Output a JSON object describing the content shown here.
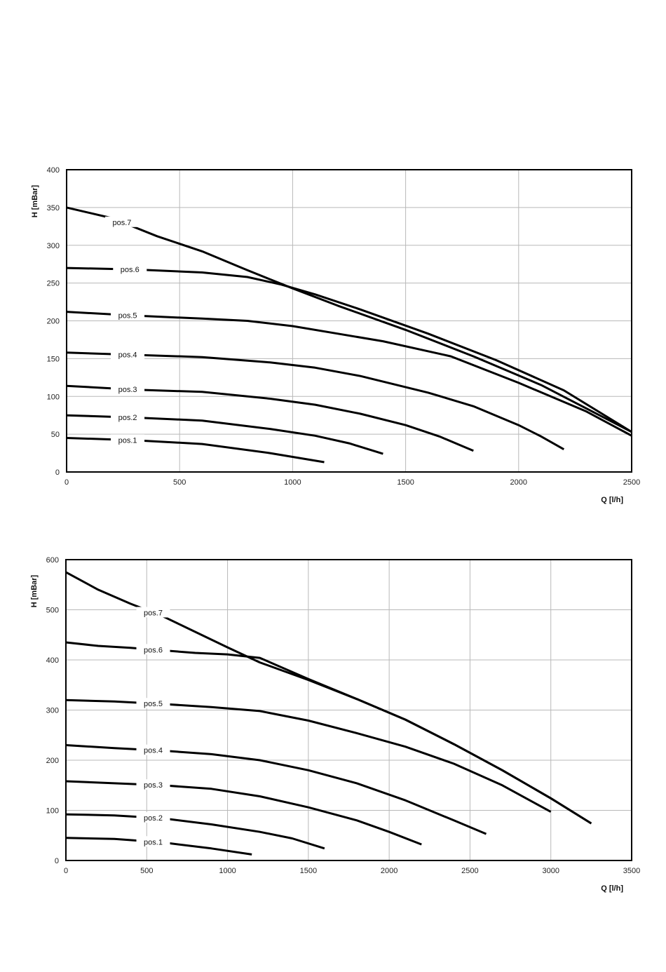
{
  "chart_data": [
    {
      "type": "line",
      "xlabel": "Q [l/h]",
      "ylabel": "H [mBar]",
      "xlim": [
        0,
        2500
      ],
      "ylim": [
        0,
        400
      ],
      "xticks": [
        0,
        500,
        1000,
        1500,
        2000,
        2500
      ],
      "yticks": [
        0,
        50,
        100,
        150,
        200,
        250,
        300,
        350,
        400
      ],
      "grid": true,
      "series": [
        {
          "name": "pos.1",
          "label_at": 270,
          "x": [
            0,
            300,
            600,
            900,
            1140
          ],
          "y": [
            45,
            42,
            37,
            25,
            13
          ]
        },
        {
          "name": "pos.2",
          "label_at": 270,
          "x": [
            0,
            300,
            600,
            900,
            1100,
            1250,
            1400
          ],
          "y": [
            75,
            72,
            68,
            57,
            48,
            38,
            24
          ]
        },
        {
          "name": "pos.3",
          "label_at": 270,
          "x": [
            0,
            300,
            600,
            900,
            1100,
            1300,
            1500,
            1650,
            1800
          ],
          "y": [
            114,
            109,
            106,
            97,
            89,
            77,
            62,
            47,
            28
          ]
        },
        {
          "name": "pos.4",
          "label_at": 270,
          "x": [
            0,
            300,
            600,
            900,
            1100,
            1300,
            1600,
            1800,
            2000,
            2100,
            2200
          ],
          "y": [
            158,
            155,
            152,
            145,
            138,
            127,
            105,
            87,
            62,
            47,
            30
          ]
        },
        {
          "name": "pos.5",
          "label_at": 270,
          "x": [
            0,
            300,
            600,
            800,
            1000,
            1200,
            1400,
            1700,
            2000,
            2300,
            2500
          ],
          "y": [
            212,
            207,
            203,
            200,
            193,
            183,
            173,
            153,
            118,
            80,
            48
          ]
        },
        {
          "name": "pos.6",
          "label_at": 280,
          "x": [
            0,
            300,
            600,
            800,
            950,
            1100,
            1300,
            1600,
            1900,
            2200,
            2500
          ],
          "y": [
            270,
            268,
            264,
            258,
            248,
            235,
            215,
            183,
            148,
            108,
            53
          ]
        },
        {
          "name": "pos.7",
          "label_at": 245,
          "x": [
            0,
            200,
            400,
            600,
            800,
            1000,
            1200,
            1500,
            1800,
            2100,
            2500
          ],
          "y": [
            350,
            336,
            312,
            292,
            267,
            243,
            220,
            188,
            153,
            115,
            53
          ]
        }
      ]
    },
    {
      "type": "line",
      "xlabel": "Q [l/h]",
      "ylabel": "H [mBar]",
      "xlim": [
        0,
        3500
      ],
      "ylim": [
        0,
        600
      ],
      "xticks": [
        0,
        500,
        1000,
        1500,
        2000,
        2500,
        3000,
        3500
      ],
      "yticks": [
        0,
        100,
        200,
        300,
        400,
        500,
        600
      ],
      "grid": true,
      "series": [
        {
          "name": "pos.1",
          "label_at": 540,
          "x": [
            0,
            300,
            600,
            900,
            1150
          ],
          "y": [
            45,
            43,
            36,
            24,
            12
          ]
        },
        {
          "name": "pos.2",
          "label_at": 540,
          "x": [
            0,
            300,
            600,
            900,
            1200,
            1400,
            1600
          ],
          "y": [
            92,
            90,
            84,
            72,
            57,
            44,
            24
          ]
        },
        {
          "name": "pos.3",
          "label_at": 540,
          "x": [
            0,
            300,
            600,
            900,
            1200,
            1500,
            1800,
            2000,
            2200
          ],
          "y": [
            158,
            154,
            150,
            143,
            128,
            106,
            80,
            57,
            32
          ]
        },
        {
          "name": "pos.4",
          "label_at": 540,
          "x": [
            0,
            300,
            600,
            900,
            1200,
            1500,
            1800,
            2100,
            2400,
            2600
          ],
          "y": [
            230,
            224,
            219,
            212,
            200,
            180,
            154,
            120,
            80,
            53
          ]
        },
        {
          "name": "pos.5",
          "label_at": 540,
          "x": [
            0,
            300,
            600,
            900,
            1200,
            1500,
            1800,
            2100,
            2400,
            2700,
            3000
          ],
          "y": [
            320,
            317,
            312,
            306,
            298,
            279,
            254,
            227,
            193,
            150,
            97
          ]
        },
        {
          "name": "pos.6",
          "label_at": 540,
          "x": [
            0,
            200,
            400,
            600,
            800,
            1000,
            1200,
            1500,
            1800,
            2100,
            2400,
            2700,
            3000,
            3250
          ],
          "y": [
            435,
            428,
            424,
            419,
            414,
            411,
            404,
            362,
            322,
            281,
            232,
            180,
            124,
            74
          ]
        },
        {
          "name": "pos.7",
          "label_at": 540,
          "x": [
            0,
            200,
            400,
            600,
            800,
            1000,
            1200,
            1500,
            1800,
            2100,
            2400,
            2700,
            3000,
            3250
          ],
          "y": [
            575,
            540,
            512,
            487,
            456,
            425,
            395,
            360,
            322,
            281,
            232,
            180,
            124,
            74
          ]
        }
      ]
    }
  ]
}
